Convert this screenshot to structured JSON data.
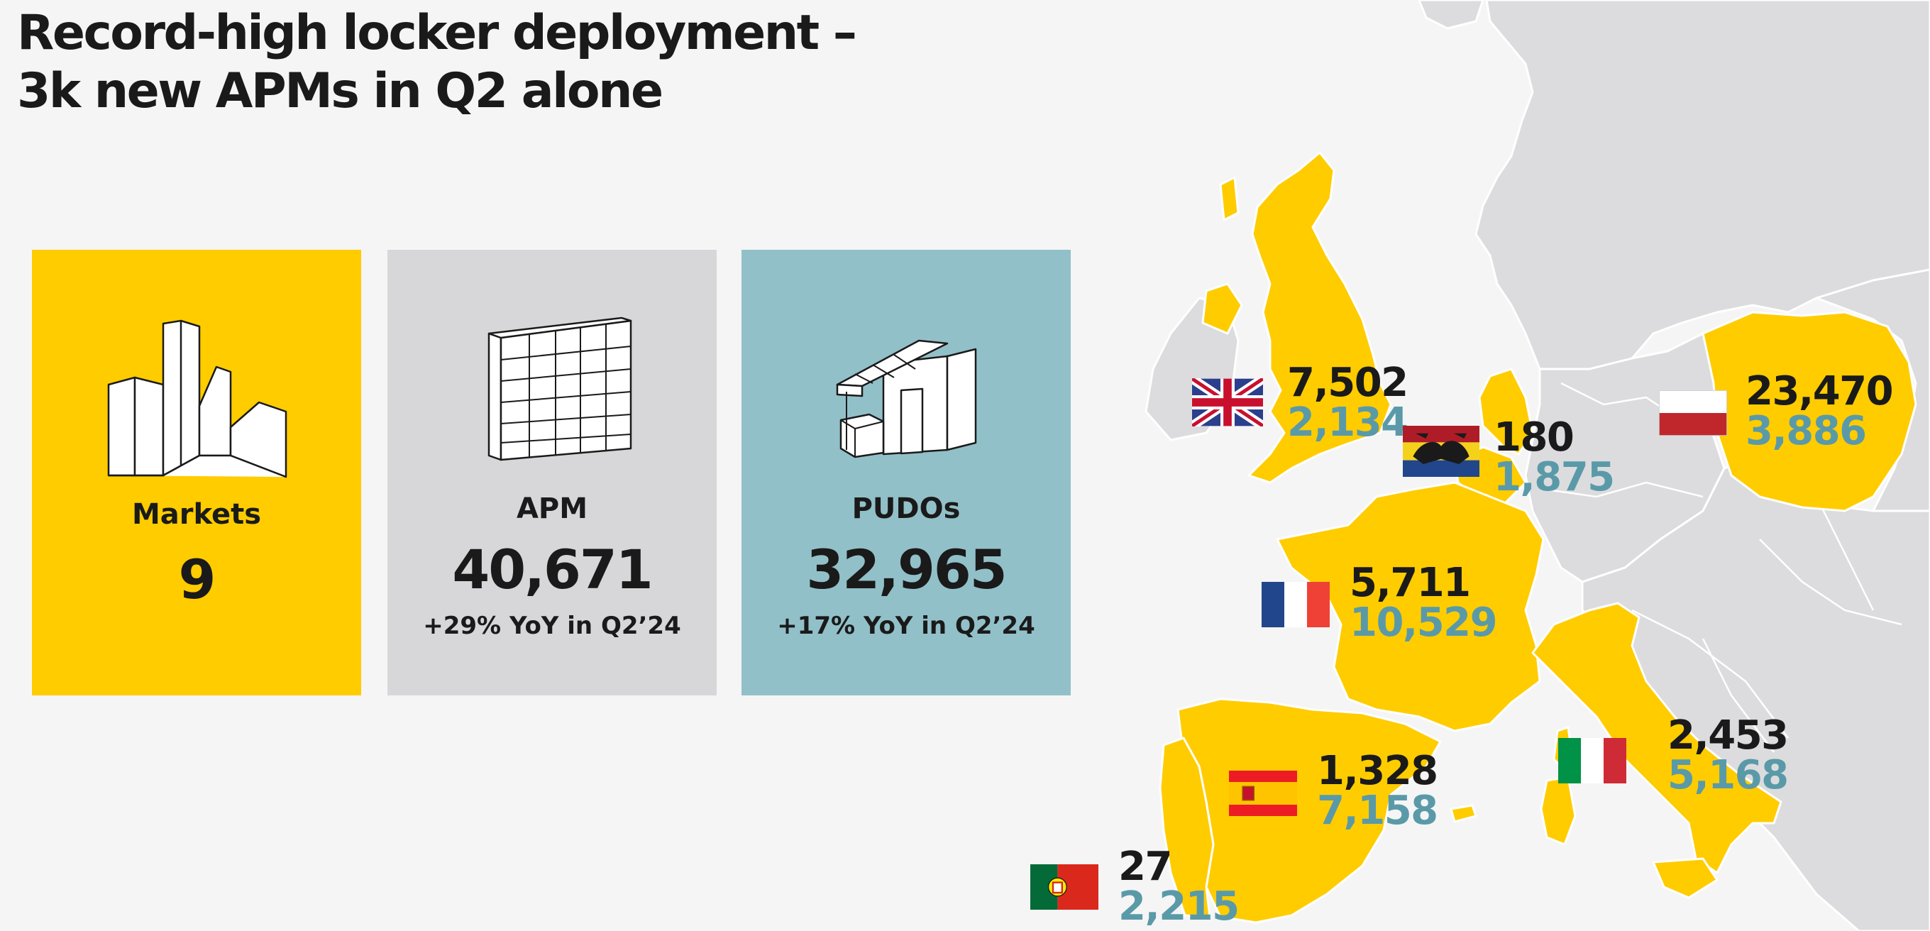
{
  "title": {
    "line1": "Record-high locker deployment –",
    "line2": "3k new APMs in Q2 alone"
  },
  "cards": {
    "markets": {
      "label": "Markets",
      "value": "9",
      "color": "#ffcc00",
      "icon": "buildings-icon"
    },
    "apm": {
      "label": "APM",
      "value": "40,671",
      "sub": "+29% YoY in Q2’24",
      "color": "#d7d7d9",
      "icon": "parcel-locker-icon"
    },
    "pudo": {
      "label": "PUDOs",
      "value": "32,965",
      "sub": "+17% YoY in Q2’24",
      "color": "#92c0c9",
      "icon": "shop-icon"
    }
  },
  "legend_colors": {
    "apm_value": "#1a1a1a",
    "pudo_value": "#5a9aa8",
    "market_fill": "#ffcc00",
    "other_land": "#dcdcde"
  },
  "countries": [
    {
      "name": "uk",
      "apm": "7,502",
      "pudo": "2,134"
    },
    {
      "name": "benelux",
      "apm": "180",
      "pudo": "1,875"
    },
    {
      "name": "poland",
      "apm": "23,470",
      "pudo": "3,886"
    },
    {
      "name": "france",
      "apm": "5,711",
      "pudo": "10,529"
    },
    {
      "name": "spain",
      "apm": "1,328",
      "pudo": "7,158"
    },
    {
      "name": "italy",
      "apm": "2,453",
      "pudo": "5,168"
    },
    {
      "name": "portugal",
      "apm": "27",
      "pudo": "2,215"
    }
  ]
}
